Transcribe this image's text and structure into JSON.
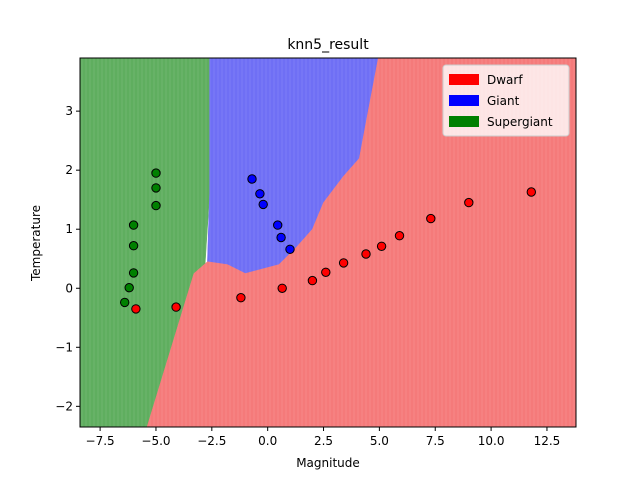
{
  "chart_data": {
    "type": "scatter",
    "title": "knn5_result",
    "xlabel": "Magnitude",
    "ylabel": "Temperature",
    "xlim": [
      -8.4,
      13.8
    ],
    "ylim": [
      -2.35,
      3.9
    ],
    "grid": false,
    "legend_position": "top-right",
    "xticks": [
      {
        "value": -7.5,
        "label": "−7.5"
      },
      {
        "value": -5.0,
        "label": "−5.0"
      },
      {
        "value": -2.5,
        "label": "−2.5"
      },
      {
        "value": 0.0,
        "label": "0.0"
      },
      {
        "value": 2.5,
        "label": "2.5"
      },
      {
        "value": 5.0,
        "label": "5.0"
      },
      {
        "value": 7.5,
        "label": "7.5"
      },
      {
        "value": 10.0,
        "label": "10.0"
      },
      {
        "value": 12.5,
        "label": "12.5"
      }
    ],
    "yticks": [
      {
        "value": -2,
        "label": "−2"
      },
      {
        "value": -1,
        "label": "−1"
      },
      {
        "value": 0,
        "label": "0"
      },
      {
        "value": 1,
        "label": "1"
      },
      {
        "value": 2,
        "label": "2"
      },
      {
        "value": 3,
        "label": "3"
      }
    ],
    "decision_regions": [
      {
        "class": "Supergiant",
        "color": "#5fae5f",
        "boundary": [
          [
            -8.4,
            3.9
          ],
          [
            -2.6,
            3.9
          ],
          [
            -2.6,
            1.6
          ],
          [
            -2.8,
            0.4
          ],
          [
            -3.3,
            0.25
          ],
          [
            -5.4,
            -2.35
          ],
          [
            -8.4,
            -2.35
          ]
        ]
      },
      {
        "class": "Giant",
        "color": "#6f6ff5",
        "boundary": [
          [
            -2.6,
            3.9
          ],
          [
            4.95,
            3.9
          ],
          [
            4.5,
            3.0
          ],
          [
            4.1,
            2.2
          ],
          [
            3.4,
            1.9
          ],
          [
            2.5,
            1.45
          ],
          [
            2.0,
            1.0
          ],
          [
            1.3,
            0.7
          ],
          [
            0.5,
            0.4
          ],
          [
            -1.0,
            0.25
          ],
          [
            -1.8,
            0.4
          ],
          [
            -2.7,
            0.45
          ],
          [
            -2.6,
            1.6
          ]
        ]
      },
      {
        "class": "Dwarf",
        "color": "#f57a7a",
        "boundary": [
          [
            4.95,
            3.9
          ],
          [
            13.8,
            3.9
          ],
          [
            13.8,
            -2.35
          ],
          [
            -5.4,
            -2.35
          ],
          [
            -3.3,
            0.25
          ],
          [
            -2.7,
            0.45
          ],
          [
            -1.8,
            0.4
          ],
          [
            -1.0,
            0.25
          ],
          [
            0.5,
            0.4
          ],
          [
            1.3,
            0.7
          ],
          [
            2.0,
            1.0
          ],
          [
            2.5,
            1.45
          ],
          [
            3.4,
            1.9
          ],
          [
            4.1,
            2.2
          ],
          [
            4.5,
            3.0
          ]
        ]
      }
    ],
    "series": [
      {
        "name": "Dwarf",
        "color": "#ff0000",
        "points": [
          [
            -5.9,
            -0.35
          ],
          [
            -4.1,
            -0.32
          ],
          [
            -1.2,
            -0.16
          ],
          [
            0.65,
            0.0
          ],
          [
            2.0,
            0.13
          ],
          [
            2.6,
            0.27
          ],
          [
            3.4,
            0.43
          ],
          [
            4.4,
            0.58
          ],
          [
            5.1,
            0.71
          ],
          [
            5.9,
            0.89
          ],
          [
            7.3,
            1.18
          ],
          [
            9.0,
            1.45
          ],
          [
            11.8,
            1.63
          ]
        ]
      },
      {
        "name": "Giant",
        "color": "#0000ff",
        "points": [
          [
            -0.7,
            1.85
          ],
          [
            -0.35,
            1.6
          ],
          [
            -0.2,
            1.42
          ],
          [
            0.45,
            1.07
          ],
          [
            0.6,
            0.86
          ],
          [
            1.0,
            0.66
          ]
        ]
      },
      {
        "name": "Supergiant",
        "color": "#008000",
        "points": [
          [
            -5.0,
            1.95
          ],
          [
            -5.0,
            1.7
          ],
          [
            -5.0,
            1.4
          ],
          [
            -6.0,
            1.07
          ],
          [
            -6.0,
            0.72
          ],
          [
            -6.0,
            0.26
          ],
          [
            -6.2,
            0.01
          ],
          [
            -6.4,
            -0.24
          ]
        ]
      }
    ]
  }
}
